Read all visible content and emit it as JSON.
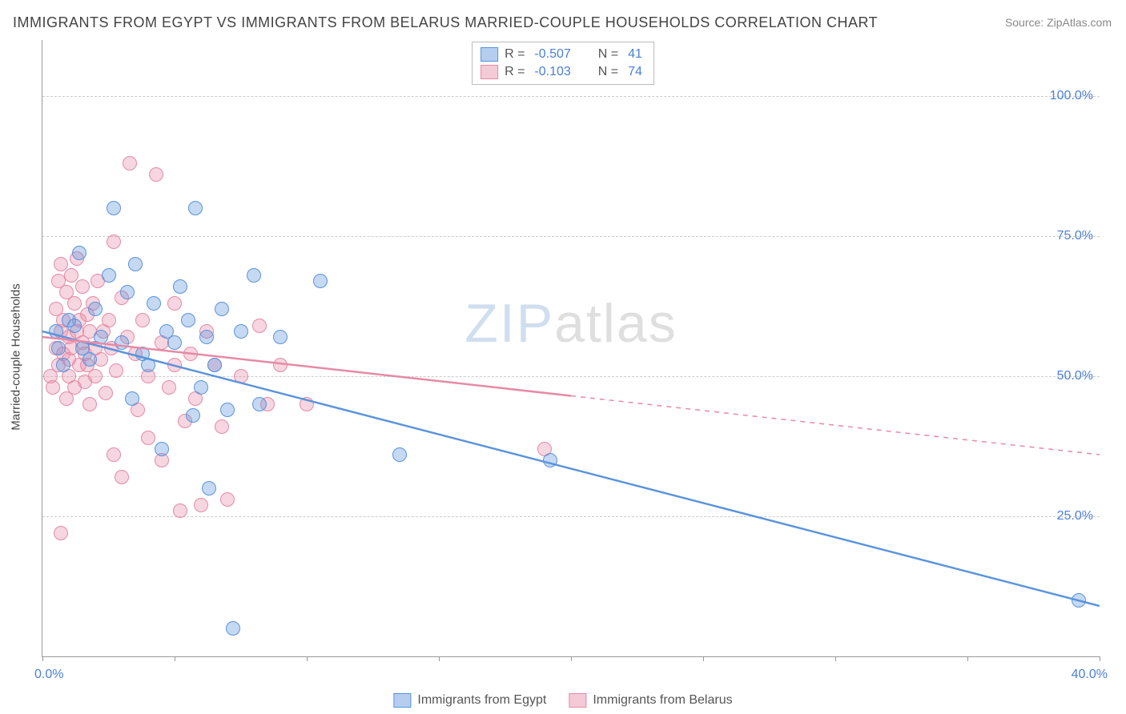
{
  "title": "IMMIGRANTS FROM EGYPT VS IMMIGRANTS FROM BELARUS MARRIED-COUPLE HOUSEHOLDS CORRELATION CHART",
  "source_label": "Source: ZipAtlas.com",
  "y_axis_title": "Married-couple Households",
  "watermark_a": "ZIP",
  "watermark_b": "atlas",
  "chart": {
    "type": "scatter",
    "xlim": [
      0,
      40
    ],
    "ylim": [
      0,
      110
    ],
    "x_ticks": [
      0,
      5,
      10,
      15,
      20,
      25,
      30,
      35,
      40
    ],
    "y_gridlines": [
      25,
      50,
      75,
      100
    ],
    "x_tick_labels": {
      "min": "0.0%",
      "max": "40.0%"
    },
    "y_tick_labels": [
      "25.0%",
      "50.0%",
      "75.0%",
      "100.0%"
    ],
    "background_color": "#ffffff",
    "grid_color": "#cccccc",
    "axis_color": "#999999",
    "tick_label_color": "#4a7fd8",
    "marker_radius": 9,
    "marker_border_width": 1.5,
    "marker_fill_opacity": 0.35
  },
  "series": [
    {
      "name": "Immigrants from Egypt",
      "color": "#5a93dc",
      "fill": "rgba(90,147,220,0.35)",
      "R": "-0.507",
      "N": "41",
      "trend": {
        "x1": 0,
        "y1": 58,
        "x2": 40,
        "y2": 9,
        "solid_until_x": 40
      },
      "points": [
        [
          0.5,
          58
        ],
        [
          0.6,
          55
        ],
        [
          0.8,
          52
        ],
        [
          1.0,
          60
        ],
        [
          1.2,
          59
        ],
        [
          1.4,
          72
        ],
        [
          1.5,
          55
        ],
        [
          1.8,
          53
        ],
        [
          2.0,
          62
        ],
        [
          2.2,
          57
        ],
        [
          2.5,
          68
        ],
        [
          2.7,
          80
        ],
        [
          3.0,
          56
        ],
        [
          3.2,
          65
        ],
        [
          3.4,
          46
        ],
        [
          3.5,
          70
        ],
        [
          3.8,
          54
        ],
        [
          4.0,
          52
        ],
        [
          4.2,
          63
        ],
        [
          4.5,
          37
        ],
        [
          4.7,
          58
        ],
        [
          5.0,
          56
        ],
        [
          5.2,
          66
        ],
        [
          5.5,
          60
        ],
        [
          5.7,
          43
        ],
        [
          5.8,
          80
        ],
        [
          6.0,
          48
        ],
        [
          6.2,
          57
        ],
        [
          6.3,
          30
        ],
        [
          6.5,
          52
        ],
        [
          6.8,
          62
        ],
        [
          7.0,
          44
        ],
        [
          7.2,
          5
        ],
        [
          7.5,
          58
        ],
        [
          8.0,
          68
        ],
        [
          8.2,
          45
        ],
        [
          9.0,
          57
        ],
        [
          10.5,
          67
        ],
        [
          13.5,
          36
        ],
        [
          19.2,
          35
        ],
        [
          39.2,
          10
        ]
      ]
    },
    {
      "name": "Immigrants from Belarus",
      "color": "#e68aa6",
      "fill": "rgba(230,138,166,0.35)",
      "R": "-0.103",
      "N": "74",
      "trend": {
        "x1": 0,
        "y1": 57,
        "x2": 40,
        "y2": 36,
        "solid_until_x": 20
      },
      "points": [
        [
          0.3,
          50
        ],
        [
          0.4,
          48
        ],
        [
          0.5,
          62
        ],
        [
          0.5,
          55
        ],
        [
          0.6,
          67
        ],
        [
          0.6,
          52
        ],
        [
          0.7,
          58
        ],
        [
          0.7,
          70
        ],
        [
          0.8,
          54
        ],
        [
          0.8,
          60
        ],
        [
          0.9,
          46
        ],
        [
          0.9,
          65
        ],
        [
          1.0,
          57
        ],
        [
          1.0,
          53
        ],
        [
          1.0,
          50
        ],
        [
          1.1,
          68
        ],
        [
          1.1,
          55
        ],
        [
          1.2,
          63
        ],
        [
          1.2,
          48
        ],
        [
          1.3,
          58
        ],
        [
          1.3,
          71
        ],
        [
          1.4,
          52
        ],
        [
          1.4,
          60
        ],
        [
          1.5,
          56
        ],
        [
          1.5,
          66
        ],
        [
          1.6,
          54
        ],
        [
          1.6,
          49
        ],
        [
          1.7,
          61
        ],
        [
          1.7,
          52
        ],
        [
          1.8,
          58
        ],
        [
          1.8,
          45
        ],
        [
          1.9,
          63
        ],
        [
          2.0,
          55
        ],
        [
          2.0,
          50
        ],
        [
          2.1,
          67
        ],
        [
          2.2,
          53
        ],
        [
          2.3,
          58
        ],
        [
          0.7,
          22
        ],
        [
          2.4,
          47
        ],
        [
          2.5,
          60
        ],
        [
          2.6,
          55
        ],
        [
          2.7,
          36
        ],
        [
          2.7,
          74
        ],
        [
          2.8,
          51
        ],
        [
          3.0,
          64
        ],
        [
          3.0,
          32
        ],
        [
          3.2,
          57
        ],
        [
          3.3,
          88
        ],
        [
          3.5,
          54
        ],
        [
          3.6,
          44
        ],
        [
          3.8,
          60
        ],
        [
          4.0,
          39
        ],
        [
          4.0,
          50
        ],
        [
          4.3,
          86
        ],
        [
          4.5,
          56
        ],
        [
          4.5,
          35
        ],
        [
          4.8,
          48
        ],
        [
          5.0,
          52
        ],
        [
          5.0,
          63
        ],
        [
          5.2,
          26
        ],
        [
          5.4,
          42
        ],
        [
          5.6,
          54
        ],
        [
          5.8,
          46
        ],
        [
          6.0,
          27
        ],
        [
          6.2,
          58
        ],
        [
          6.5,
          52
        ],
        [
          6.8,
          41
        ],
        [
          7.0,
          28
        ],
        [
          7.5,
          50
        ],
        [
          8.2,
          59
        ],
        [
          8.5,
          45
        ],
        [
          9.0,
          52
        ],
        [
          10.0,
          45
        ],
        [
          19.0,
          37
        ]
      ]
    }
  ],
  "legend_top": {
    "rows": [
      {
        "swatch_fill": "rgba(90,147,220,0.45)",
        "swatch_border": "#5a93dc",
        "R_label": "R =",
        "R_val": "-0.507",
        "N_label": "N =",
        "N_val": "41"
      },
      {
        "swatch_fill": "rgba(230,138,166,0.45)",
        "swatch_border": "#e68aa6",
        "R_label": "R =",
        "R_val": "-0.103",
        "N_label": "N =",
        "N_val": "74"
      }
    ]
  },
  "legend_bottom": {
    "items": [
      {
        "swatch_fill": "rgba(90,147,220,0.45)",
        "swatch_border": "#5a93dc",
        "label": "Immigrants from Egypt"
      },
      {
        "swatch_fill": "rgba(230,138,166,0.45)",
        "swatch_border": "#e68aa6",
        "label": "Immigrants from Belarus"
      }
    ]
  }
}
